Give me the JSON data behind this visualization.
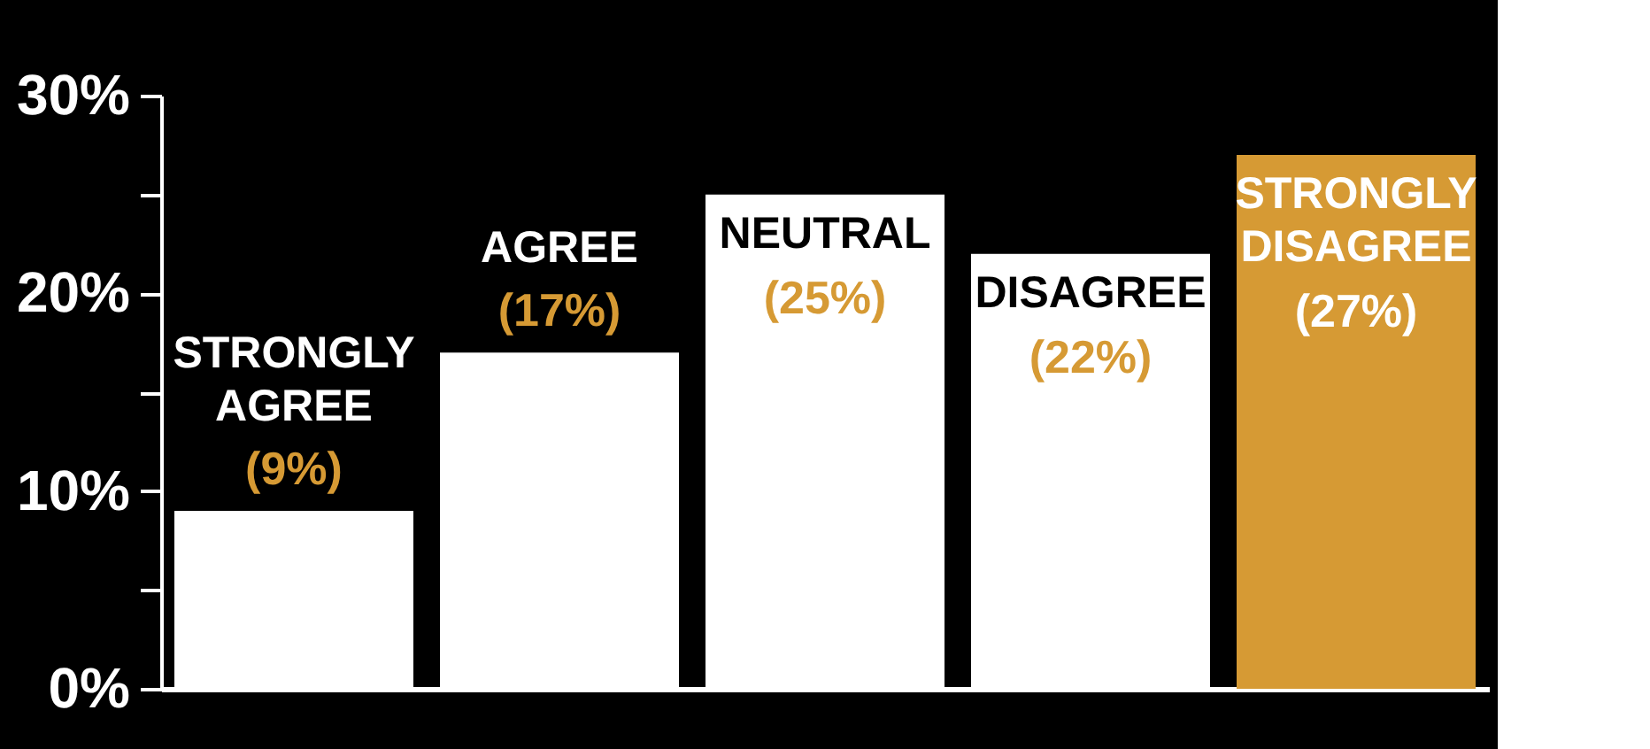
{
  "chart_data": {
    "type": "bar",
    "categories": [
      "STRONGLY AGREE",
      "AGREE",
      "NEUTRAL",
      "DISAGREE",
      "STRONGLY DISAGREE"
    ],
    "values": [
      9,
      17,
      25,
      22,
      27
    ],
    "value_labels": [
      "(9%)",
      "(17%)",
      "(25%)",
      "(22%)",
      "(27%)"
    ],
    "colors": [
      "#ffffff",
      "#ffffff",
      "#ffffff",
      "#ffffff",
      "#d69a34"
    ],
    "ylim": [
      0,
      30
    ],
    "yticks": [
      {
        "value": 0,
        "label": "0%"
      },
      {
        "value": 5,
        "label": null
      },
      {
        "value": 10,
        "label": "10%"
      },
      {
        "value": 15,
        "label": null
      },
      {
        "value": 20,
        "label": "20%"
      },
      {
        "value": 25,
        "label": null
      },
      {
        "value": 30,
        "label": "30%"
      }
    ],
    "grid": false
  }
}
